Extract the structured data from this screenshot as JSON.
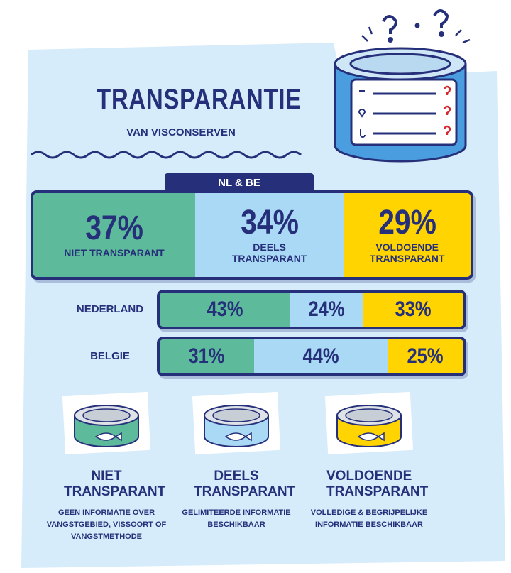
{
  "chart_data": {
    "type": "stacked-bar",
    "title": "TRANSPARANTIE",
    "subtitle": "VAN VISCONSERVEN",
    "categories": [
      "NL & BE",
      "NEDERLAND",
      "BELGIE"
    ],
    "series": [
      {
        "name": "NIET TRANSPARANT",
        "color": "#5dbb9b",
        "values": [
          37,
          43,
          31
        ],
        "value_labels": [
          "37%",
          "43%",
          "31%"
        ],
        "description": "GEEN INFORMATIE OVER VANGSTGEBIED, VISSOORT OF VANGSTMETHODE"
      },
      {
        "name": "DEELS TRANSPARANT",
        "color": "#a9d9f5",
        "values": [
          34,
          24,
          44
        ],
        "value_labels": [
          "34%",
          "24%",
          "44%"
        ],
        "description": "GELIMITEERDE INFORMATIE BESCHIKBAAR"
      },
      {
        "name": "VOLDOENDE TRANSPARANT",
        "color": "#ffd400",
        "values": [
          29,
          33,
          25
        ],
        "value_labels": [
          "29%",
          "33%",
          "25%"
        ],
        "description": "VOLLEDIGE & BEGRIJPELIJKE INFORMATIE BESCHIKBAAR"
      }
    ]
  }
}
